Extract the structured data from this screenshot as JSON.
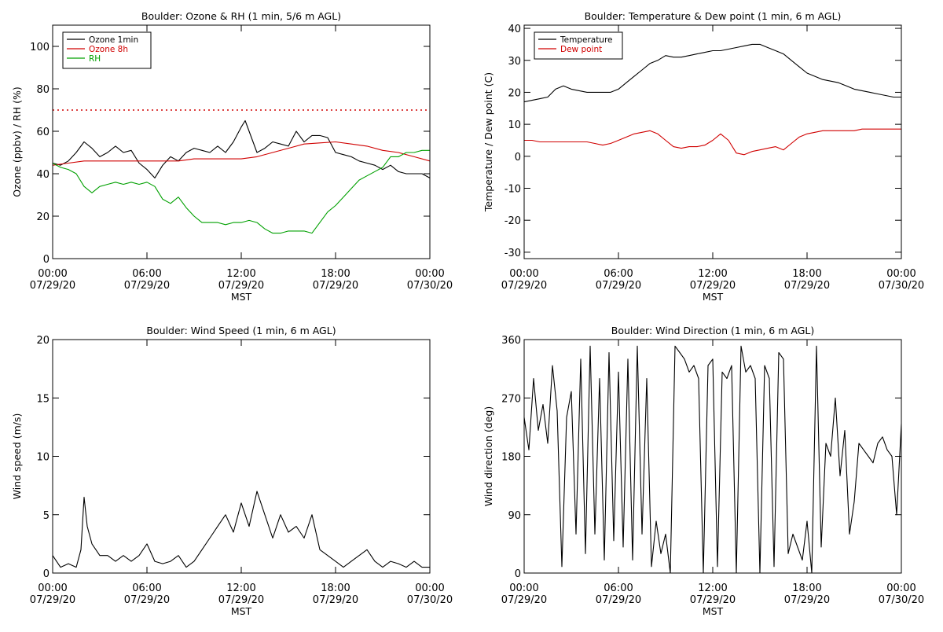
{
  "chart_data": [
    {
      "type": "line",
      "title": "Boulder: Ozone & RH (1 min, 5/6 m AGL)",
      "xlabel": "MST",
      "ylabel": "Ozone (ppbv) / RH (%)",
      "xlim": [
        0,
        24
      ],
      "ylim": [
        0,
        110
      ],
      "yticks": [
        0,
        20,
        40,
        60,
        80,
        100
      ],
      "xticks": [
        {
          "v": 0,
          "time": "00:00",
          "date": "07/29/20"
        },
        {
          "v": 6,
          "time": "06:00",
          "date": "07/29/20"
        },
        {
          "v": 12,
          "time": "12:00",
          "date": "07/29/20"
        },
        {
          "v": 18,
          "time": "18:00",
          "date": "07/29/20"
        },
        {
          "v": 24,
          "time": "00:00",
          "date": "07/30/20"
        }
      ],
      "legend": {
        "position": "top-left"
      },
      "reference_line": {
        "y": 70,
        "style": "dotted",
        "color": "#d00000"
      },
      "series": [
        {
          "name": "Ozone 1min",
          "color": "#000000",
          "x": [
            0,
            0.5,
            1,
            1.5,
            2,
            2.5,
            3,
            3.5,
            4,
            4.5,
            5,
            5.5,
            6,
            6.5,
            7,
            7.5,
            8,
            8.5,
            9,
            9.5,
            10,
            10.5,
            11,
            11.5,
            12,
            12.25,
            12.5,
            12.75,
            13,
            13.5,
            14,
            14.5,
            15,
            15.5,
            16,
            16.5,
            17,
            17.5,
            18,
            18.5,
            19,
            19.5,
            20,
            20.5,
            21,
            21.5,
            22,
            22.5,
            23,
            23.5,
            24
          ],
          "y": [
            45,
            44,
            46,
            50,
            55,
            52,
            48,
            50,
            53,
            50,
            51,
            45,
            42,
            38,
            44,
            48,
            46,
            50,
            52,
            51,
            50,
            53,
            50,
            55,
            62,
            65,
            60,
            55,
            50,
            52,
            55,
            54,
            53,
            60,
            55,
            58,
            58,
            57,
            50,
            49,
            48,
            46,
            45,
            44,
            42,
            44,
            41,
            40,
            40,
            40,
            38
          ]
        },
        {
          "name": "Ozone 8h",
          "color": "#d00000",
          "x": [
            0,
            1,
            2,
            3,
            4,
            5,
            6,
            7,
            8,
            9,
            10,
            11,
            12,
            13,
            14,
            15,
            16,
            17,
            18,
            19,
            20,
            21,
            22,
            23,
            24
          ],
          "y": [
            44,
            45,
            46,
            46,
            46,
            46,
            46,
            46,
            46,
            47,
            47,
            47,
            47,
            48,
            50,
            52,
            54,
            54.5,
            55,
            54,
            53,
            51,
            50,
            48,
            46
          ]
        },
        {
          "name": "RH",
          "color": "#00a000",
          "x": [
            0,
            0.5,
            1,
            1.5,
            2,
            2.5,
            3,
            3.5,
            4,
            4.5,
            5,
            5.5,
            6,
            6.5,
            7,
            7.5,
            8,
            8.5,
            9,
            9.5,
            10,
            10.5,
            11,
            11.5,
            12,
            12.5,
            13,
            13.5,
            14,
            14.5,
            15,
            15.5,
            16,
            16.5,
            17,
            17.5,
            18,
            18.5,
            19,
            19.5,
            20,
            20.5,
            21,
            21.5,
            22,
            22.5,
            23,
            23.5,
            24
          ],
          "y": [
            45,
            43,
            42,
            40,
            34,
            31,
            34,
            35,
            36,
            35,
            36,
            35,
            36,
            34,
            28,
            26,
            29,
            24,
            20,
            17,
            17,
            17,
            16,
            17,
            17,
            18,
            17,
            14,
            12,
            12,
            13,
            13,
            13,
            12,
            17,
            22,
            25,
            29,
            33,
            37,
            39,
            41,
            43,
            48,
            48,
            50,
            50,
            51,
            51
          ]
        }
      ]
    },
    {
      "type": "line",
      "title": "Boulder: Temperature & Dew point (1 min, 6 m AGL)",
      "xlabel": "MST",
      "ylabel": "Temperature / Dew point (C)",
      "xlim": [
        0,
        24
      ],
      "ylim": [
        -32,
        41
      ],
      "yticks": [
        -30,
        -20,
        -10,
        0,
        10,
        20,
        30,
        40
      ],
      "xticks": [
        {
          "v": 0,
          "time": "00:00",
          "date": "07/29/20"
        },
        {
          "v": 6,
          "time": "06:00",
          "date": "07/29/20"
        },
        {
          "v": 12,
          "time": "12:00",
          "date": "07/29/20"
        },
        {
          "v": 18,
          "time": "18:00",
          "date": "07/29/20"
        },
        {
          "v": 24,
          "time": "00:00",
          "date": "07/30/20"
        }
      ],
      "legend": {
        "position": "top-left"
      },
      "series": [
        {
          "name": "Temperature",
          "color": "#000000",
          "x": [
            0,
            0.5,
            1,
            1.5,
            2,
            2.5,
            3,
            3.5,
            4,
            4.5,
            5,
            5.5,
            6,
            6.5,
            7,
            7.5,
            8,
            8.5,
            9,
            9.5,
            10,
            10.5,
            11,
            11.5,
            12,
            12.5,
            13,
            13.5,
            14,
            14.5,
            15,
            15.5,
            16,
            16.5,
            17,
            17.5,
            18,
            18.5,
            19,
            19.5,
            20,
            20.5,
            21,
            21.5,
            22,
            22.5,
            23,
            23.5,
            24
          ],
          "y": [
            17,
            17.5,
            18,
            18.5,
            21,
            22,
            21,
            20.5,
            20,
            20,
            20,
            20,
            21,
            23,
            25,
            27,
            29,
            30,
            31.5,
            31,
            31,
            31.5,
            32,
            32.5,
            33,
            33,
            33.5,
            34,
            34.5,
            35,
            35,
            34,
            33,
            32,
            30,
            28,
            26,
            25,
            24,
            23.5,
            23,
            22,
            21,
            20.5,
            20,
            19.5,
            19,
            18.5,
            18.5
          ]
        },
        {
          "name": "Dew point",
          "color": "#d00000",
          "x": [
            0,
            0.5,
            1,
            1.5,
            2,
            2.5,
            3,
            3.5,
            4,
            4.5,
            5,
            5.5,
            6,
            6.5,
            7,
            7.5,
            8,
            8.5,
            9,
            9.5,
            10,
            10.5,
            11,
            11.5,
            12,
            12.5,
            13,
            13.5,
            14,
            14.5,
            15,
            15.5,
            16,
            16.5,
            17,
            17.5,
            18,
            18.5,
            19,
            19.5,
            20,
            20.5,
            21,
            21.5,
            22,
            22.5,
            23,
            23.5,
            24
          ],
          "y": [
            5,
            5,
            4.5,
            4.5,
            4.5,
            4.5,
            4.5,
            4.5,
            4.5,
            4,
            3.5,
            4,
            5,
            6,
            7,
            7.5,
            8,
            7,
            5,
            3,
            2.5,
            3,
            3,
            3.5,
            5,
            7,
            5,
            1,
            0.5,
            1.5,
            2,
            2.5,
            3,
            2,
            4,
            6,
            7,
            7.5,
            8,
            8,
            8,
            8,
            8,
            8.5,
            8.5,
            8.5,
            8.5,
            8.5,
            8.5
          ]
        }
      ]
    },
    {
      "type": "line",
      "title": "Boulder: Wind Speed (1 min, 6 m AGL)",
      "xlabel": "MST",
      "ylabel": "Wind speed (m/s)",
      "xlim": [
        0,
        24
      ],
      "ylim": [
        0,
        20
      ],
      "yticks": [
        0,
        5,
        10,
        15,
        20
      ],
      "xticks": [
        {
          "v": 0,
          "time": "00:00",
          "date": "07/29/20"
        },
        {
          "v": 6,
          "time": "06:00",
          "date": "07/29/20"
        },
        {
          "v": 12,
          "time": "12:00",
          "date": "07/29/20"
        },
        {
          "v": 18,
          "time": "18:00",
          "date": "07/29/20"
        },
        {
          "v": 24,
          "time": "00:00",
          "date": "07/30/20"
        }
      ],
      "series": [
        {
          "name": "",
          "color": "#000000",
          "x": [
            0,
            0.5,
            1,
            1.5,
            1.8,
            2,
            2.2,
            2.5,
            3,
            3.5,
            4,
            4.5,
            5,
            5.5,
            6,
            6.5,
            7,
            7.5,
            8,
            8.5,
            9,
            9.5,
            10,
            10.5,
            11,
            11.5,
            12,
            12.5,
            13,
            13.5,
            14,
            14.5,
            15,
            15.5,
            16,
            16.5,
            17,
            17.5,
            18,
            18.5,
            19,
            19.5,
            20,
            20.5,
            21,
            21.5,
            22,
            22.5,
            23,
            23.5,
            24
          ],
          "y": [
            1.5,
            0.5,
            0.8,
            0.5,
            2,
            6.5,
            4,
            2.5,
            1.5,
            1.5,
            1,
            1.5,
            1,
            1.5,
            2.5,
            1,
            0.8,
            1,
            1.5,
            0.5,
            1,
            2,
            3,
            4,
            5,
            3.5,
            6,
            4,
            7,
            5,
            3,
            5,
            3.5,
            4,
            3,
            5,
            2,
            1.5,
            1,
            0.5,
            1,
            1.5,
            2,
            1,
            0.5,
            1,
            0.8,
            0.5,
            1,
            0.5,
            0.5
          ]
        }
      ]
    },
    {
      "type": "line",
      "title": "Boulder: Wind Direction (1 min, 6 m AGL)",
      "xlabel": "MST",
      "ylabel": "Wind direction (deg)",
      "xlim": [
        0,
        24
      ],
      "ylim": [
        0,
        360
      ],
      "yticks": [
        0,
        90,
        180,
        270,
        360
      ],
      "xticks": [
        {
          "v": 0,
          "time": "00:00",
          "date": "07/29/20"
        },
        {
          "v": 6,
          "time": "06:00",
          "date": "07/29/20"
        },
        {
          "v": 12,
          "time": "12:00",
          "date": "07/29/20"
        },
        {
          "v": 18,
          "time": "18:00",
          "date": "07/29/20"
        },
        {
          "v": 24,
          "time": "00:00",
          "date": "07/30/20"
        }
      ],
      "series": [
        {
          "name": "",
          "color": "#000000",
          "x": [
            0,
            0.3,
            0.6,
            0.9,
            1.2,
            1.5,
            1.8,
            2.1,
            2.4,
            2.7,
            3.0,
            3.3,
            3.6,
            3.9,
            4.2,
            4.5,
            4.8,
            5.1,
            5.4,
            5.7,
            6.0,
            6.3,
            6.6,
            6.9,
            7.2,
            7.5,
            7.8,
            8.1,
            8.4,
            8.7,
            9.0,
            9.3,
            9.6,
            9.9,
            10.2,
            10.5,
            10.8,
            11.1,
            11.4,
            11.7,
            12.0,
            12.3,
            12.6,
            12.9,
            13.2,
            13.5,
            13.8,
            14.1,
            14.4,
            14.7,
            15.0,
            15.3,
            15.6,
            15.9,
            16.2,
            16.5,
            16.8,
            17.1,
            17.4,
            17.7,
            18.0,
            18.3,
            18.6,
            18.9,
            19.2,
            19.5,
            19.8,
            20.1,
            20.4,
            20.7,
            21.0,
            21.3,
            21.6,
            21.9,
            22.2,
            22.5,
            22.8,
            23.1,
            23.4,
            23.7,
            24.0
          ],
          "y": [
            240,
            190,
            300,
            220,
            260,
            200,
            320,
            250,
            10,
            240,
            280,
            60,
            330,
            30,
            350,
            60,
            300,
            20,
            340,
            50,
            310,
            40,
            330,
            20,
            350,
            60,
            300,
            10,
            80,
            30,
            60,
            0,
            350,
            340,
            330,
            310,
            320,
            300,
            0,
            320,
            330,
            10,
            310,
            300,
            320,
            0,
            350,
            310,
            320,
            300,
            0,
            320,
            300,
            10,
            340,
            330,
            30,
            60,
            40,
            20,
            80,
            0,
            350,
            40,
            200,
            180,
            270,
            150,
            220,
            60,
            110,
            200,
            190,
            180,
            170,
            200,
            210,
            190,
            180,
            90,
            230
          ]
        }
      ]
    }
  ]
}
